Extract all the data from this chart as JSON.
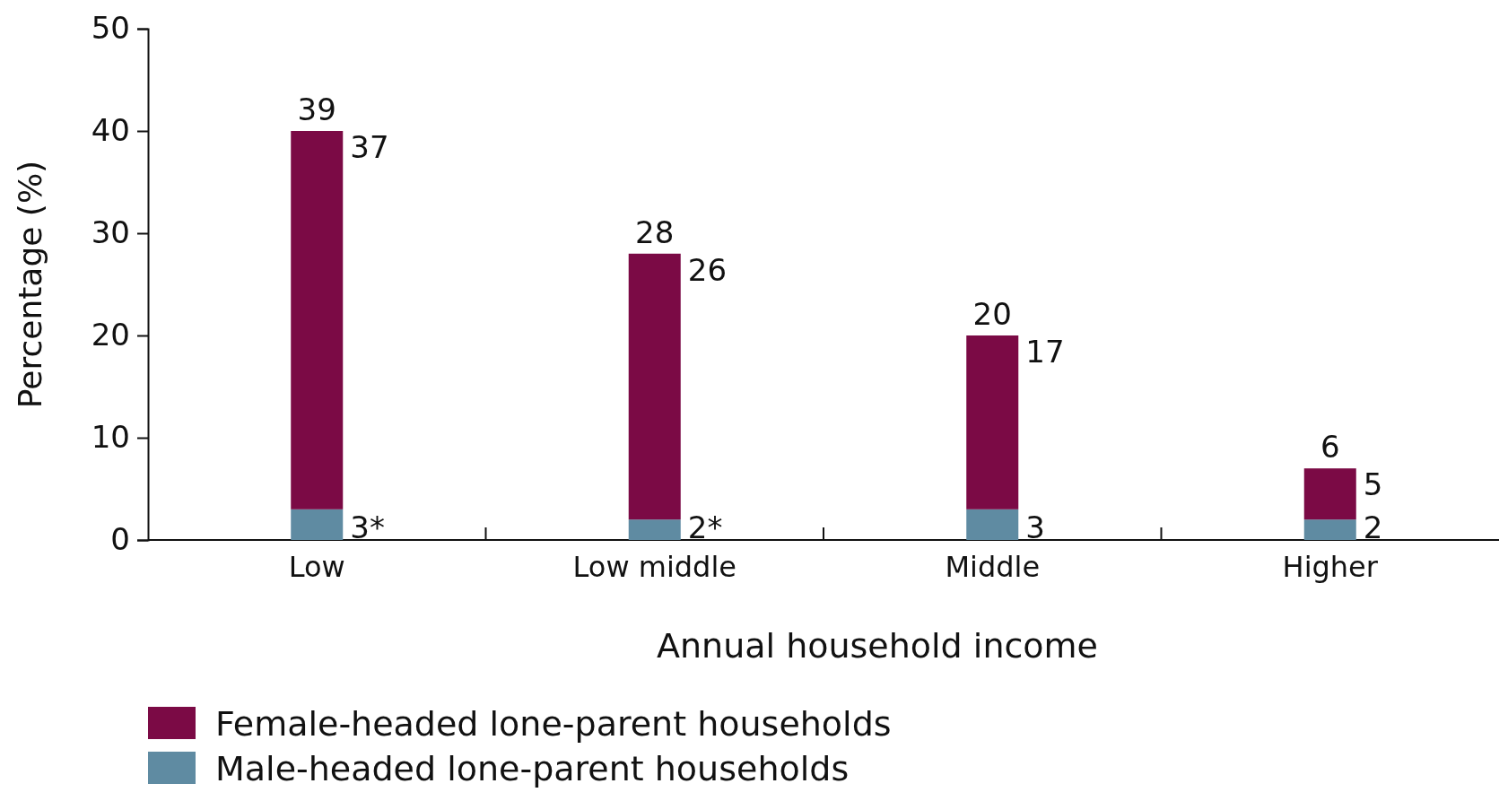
{
  "chart_data": {
    "type": "bar",
    "stacked": true,
    "xlabel": "Annual household income",
    "ylabel": "Percentage (%)",
    "categories": [
      "Low",
      "Low middle",
      "Middle",
      "Higher"
    ],
    "series": [
      {
        "name": "Male-headed lone-parent households",
        "color": "#5f8ba2",
        "values": [
          3,
          2,
          3,
          2
        ],
        "value_labels": [
          "3*",
          "2*",
          "3",
          "2"
        ]
      },
      {
        "name": "Female-headed lone-parent households",
        "color": "#7b0a45",
        "values": [
          37,
          26,
          17,
          5
        ],
        "value_labels": [
          "37",
          "26",
          "17",
          "5"
        ]
      }
    ],
    "totals": [
      "39",
      "28",
      "20",
      "6"
    ],
    "ylim": [
      0,
      50
    ],
    "yticks": [
      0,
      10,
      20,
      30,
      40,
      50
    ],
    "grid": false,
    "legend": "bottom left"
  }
}
